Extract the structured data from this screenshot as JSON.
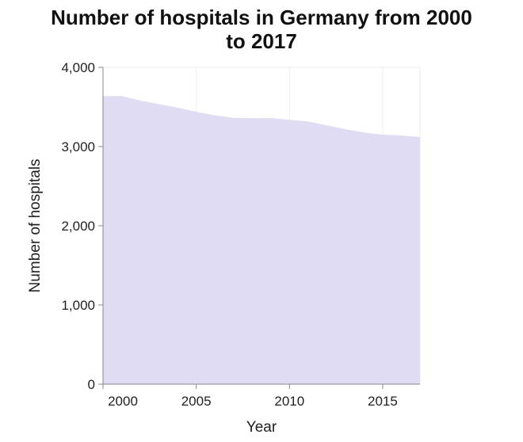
{
  "chart_data": {
    "type": "area",
    "title_lines": [
      "Number of hospitals in Germany from 2000",
      "to 2017"
    ],
    "xlabel": "Year",
    "ylabel": "Number of hospitals",
    "x": [
      2000,
      2001,
      2002,
      2003,
      2004,
      2005,
      2006,
      2007,
      2008,
      2009,
      2010,
      2011,
      2012,
      2013,
      2014,
      2015,
      2016,
      2017
    ],
    "values": [
      3636,
      3638,
      3580,
      3536,
      3491,
      3440,
      3392,
      3362,
      3358,
      3360,
      3338,
      3316,
      3267,
      3220,
      3178,
      3150,
      3140,
      3120
    ],
    "xlim": [
      2000,
      2017
    ],
    "ylim": [
      0,
      4000
    ],
    "xticks": [
      2000,
      2005,
      2010,
      2015
    ],
    "yticks": [
      0,
      1000,
      2000,
      3000,
      4000
    ],
    "xtick_labels": [
      "2000",
      "2005",
      "2010",
      "2015"
    ],
    "ytick_labels": [
      "0",
      "1,000",
      "2,000",
      "3,000",
      "4,000"
    ],
    "grid": true,
    "fill_color": "#e0dcf3",
    "grid_color": "#eeeeee",
    "axis_color": "#888888"
  }
}
